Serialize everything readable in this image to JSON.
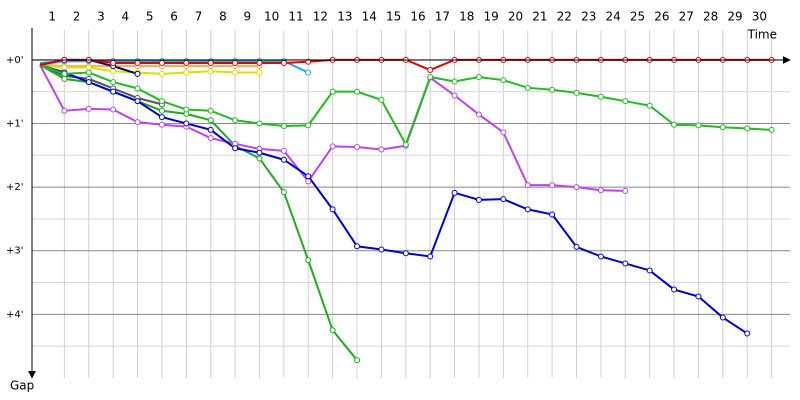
{
  "chart_data": {
    "type": "line",
    "x_label": "Time",
    "y_label": "Gap",
    "x": [
      0,
      1,
      2,
      3,
      4,
      5,
      6,
      7,
      8,
      9,
      10,
      11,
      12,
      13,
      14,
      15,
      16,
      17,
      18,
      19,
      20,
      21,
      22,
      23,
      24,
      25,
      26,
      27,
      28,
      29,
      30
    ],
    "xlim": [
      0,
      31
    ],
    "xticks": [
      1,
      2,
      3,
      4,
      5,
      6,
      7,
      8,
      9,
      10,
      11,
      12,
      13,
      14,
      15,
      16,
      17,
      18,
      19,
      20,
      21,
      22,
      23,
      24,
      25,
      26,
      27,
      28,
      29,
      30
    ],
    "ylim": [
      -0.5,
      5
    ],
    "yticks": [
      {
        "value": 0,
        "label": "+0'"
      },
      {
        "value": 1,
        "label": "+1'"
      },
      {
        "value": 2,
        "label": "+2'"
      },
      {
        "value": 3,
        "label": "+3'"
      },
      {
        "value": 4,
        "label": "+4'"
      }
    ],
    "minor_yticks": [
      0.5,
      1.5,
      2.5,
      3.5,
      4.5
    ],
    "grid": true,
    "series": [
      {
        "color": "#ffaa44",
        "values": [
          0.08,
          0.1,
          0.1,
          0.1,
          0.1,
          0.1,
          0.1,
          0.1,
          0.1,
          0.1,
          null,
          null,
          null,
          null,
          null,
          null,
          null,
          null,
          null,
          null,
          null,
          null,
          null,
          null,
          null,
          null,
          null,
          null,
          null,
          null,
          null
        ]
      },
      {
        "color": "#88ccff",
        "values": [
          0.08,
          0.03,
          0.02,
          0.02,
          0.02,
          0.02,
          0.02,
          0.02,
          0.02,
          0.02,
          0.03,
          null,
          null,
          null,
          null,
          null,
          null,
          null,
          null,
          null,
          null,
          null,
          null,
          null,
          null,
          null,
          null,
          null,
          null,
          null,
          null
        ]
      },
      {
        "color": "#22aadd",
        "values": [
          0.05,
          0.02,
          0.02,
          0.02,
          0.02,
          0.02,
          0.02,
          0.02,
          0.02,
          0.02,
          0.02,
          0.2,
          null,
          null,
          null,
          null,
          null,
          null,
          null,
          null,
          null,
          null,
          null,
          null,
          null,
          null,
          null,
          null,
          null,
          null,
          null
        ]
      },
      {
        "color": "#dddd00",
        "values": [
          0.08,
          0.12,
          0.12,
          0.18,
          0.2,
          0.22,
          0.2,
          0.18,
          0.2,
          0.2,
          null,
          null,
          null,
          null,
          null,
          null,
          null,
          null,
          null,
          null,
          null,
          null,
          null,
          null,
          null,
          null,
          null,
          null,
          null,
          null,
          null
        ]
      },
      {
        "color": "#000066",
        "values": [
          0.08,
          0.0,
          0.0,
          0.1,
          0.22,
          null,
          null,
          null,
          null,
          null,
          null,
          null,
          null,
          null,
          null,
          null,
          null,
          null,
          null,
          null,
          null,
          null,
          null,
          null,
          null,
          null,
          null,
          null,
          null,
          null,
          null
        ]
      },
      {
        "color": "#555555",
        "values": [
          0.08,
          0.25,
          0.3,
          0.45,
          0.6,
          0.7,
          null,
          null,
          null,
          null,
          null,
          null,
          null,
          null,
          null,
          null,
          null,
          null,
          null,
          null,
          null,
          null,
          null,
          null,
          null,
          null,
          null,
          null,
          null,
          null,
          null
        ]
      },
      {
        "color": "#22aa22",
        "values": [
          0.08,
          0.3,
          0.35,
          0.5,
          0.65,
          0.8,
          0.85,
          0.95,
          1.35,
          1.55,
          2.08,
          3.15,
          4.25,
          4.72,
          null,
          null,
          null,
          null,
          null,
          null,
          null,
          null,
          null,
          null,
          null,
          null,
          null,
          null,
          null,
          null,
          null
        ]
      },
      {
        "color": "#bb44ee",
        "values": [
          0.08,
          0.8,
          0.77,
          0.78,
          0.98,
          1.02,
          1.05,
          1.23,
          1.32,
          1.4,
          1.43,
          1.91,
          1.36,
          1.37,
          1.41,
          1.35,
          0.28,
          0.56,
          0.86,
          1.14,
          1.97,
          1.97,
          2.0,
          2.05,
          2.06,
          null,
          null,
          null,
          null,
          null,
          null
        ]
      },
      {
        "color": "#0000cc",
        "values": [
          0.08,
          0.2,
          0.35,
          0.5,
          0.65,
          0.9,
          1.0,
          1.1,
          1.39,
          1.46,
          1.57,
          1.83,
          2.35,
          2.93,
          2.98,
          3.04,
          3.09,
          2.09,
          2.2,
          2.19,
          2.35,
          2.43,
          2.94,
          3.09,
          3.2,
          3.31,
          3.61,
          3.72,
          4.05,
          4.3,
          null
        ]
      },
      {
        "color": "#22bb22",
        "values": [
          0.08,
          0.22,
          0.2,
          0.35,
          0.45,
          0.65,
          0.78,
          0.8,
          0.95,
          1.0,
          1.04,
          1.03,
          0.5,
          0.5,
          0.63,
          1.33,
          0.27,
          0.34,
          0.27,
          0.32,
          0.44,
          0.47,
          0.52,
          0.58,
          0.65,
          0.72,
          1.02,
          1.03,
          1.06,
          1.08,
          1.1
        ]
      },
      {
        "color": "#e00000",
        "values": [
          0.08,
          0.0,
          0.0,
          0.05,
          0.05,
          0.05,
          0.05,
          0.05,
          0.05,
          0.05,
          0.05,
          0.03,
          0.0,
          0.0,
          0.0,
          0.0,
          0.16,
          0.0,
          0.0,
          0.0,
          0.0,
          0.0,
          0.0,
          0.0,
          0.0,
          0.0,
          0.0,
          0.0,
          0.0,
          0.0,
          0.0
        ]
      }
    ]
  }
}
